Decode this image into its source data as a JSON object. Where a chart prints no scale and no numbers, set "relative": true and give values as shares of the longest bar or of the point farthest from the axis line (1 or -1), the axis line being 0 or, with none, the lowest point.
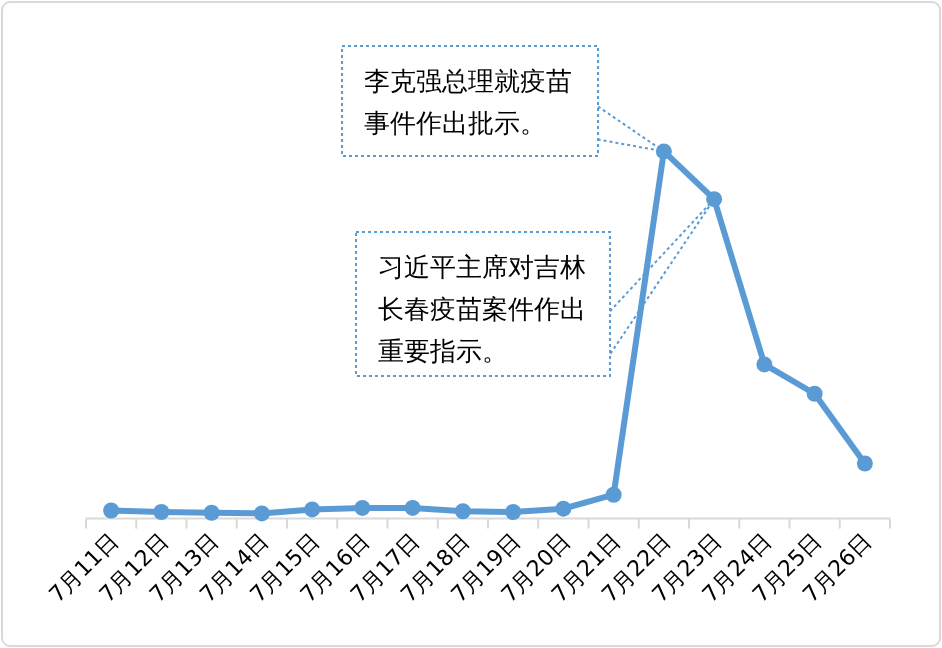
{
  "chart_data": {
    "type": "line",
    "relative": true,
    "marker": "circle",
    "line_style": "solid",
    "categories": [
      "7月11日",
      "7月12日",
      "7月13日",
      "7月14日",
      "7月15日",
      "7月16日",
      "7月17日",
      "7月18日",
      "7月19日",
      "7月20日",
      "7月21日",
      "7月22日",
      "7月23日",
      "7月24日",
      "7月25日",
      "7月26日"
    ],
    "series": [
      {
        "color": "#5b9bd5",
        "values": [
          0.022,
          0.018,
          0.016,
          0.014,
          0.025,
          0.029,
          0.029,
          0.02,
          0.018,
          0.027,
          0.065,
          1,
          0.87,
          0.42,
          0.34,
          0.15
        ]
      }
    ],
    "annotations": [
      "李克强总理就疫苗事件作出批示。",
      "习近平主席对吉林长春疫苗案件作出重要指示。"
    ]
  }
}
